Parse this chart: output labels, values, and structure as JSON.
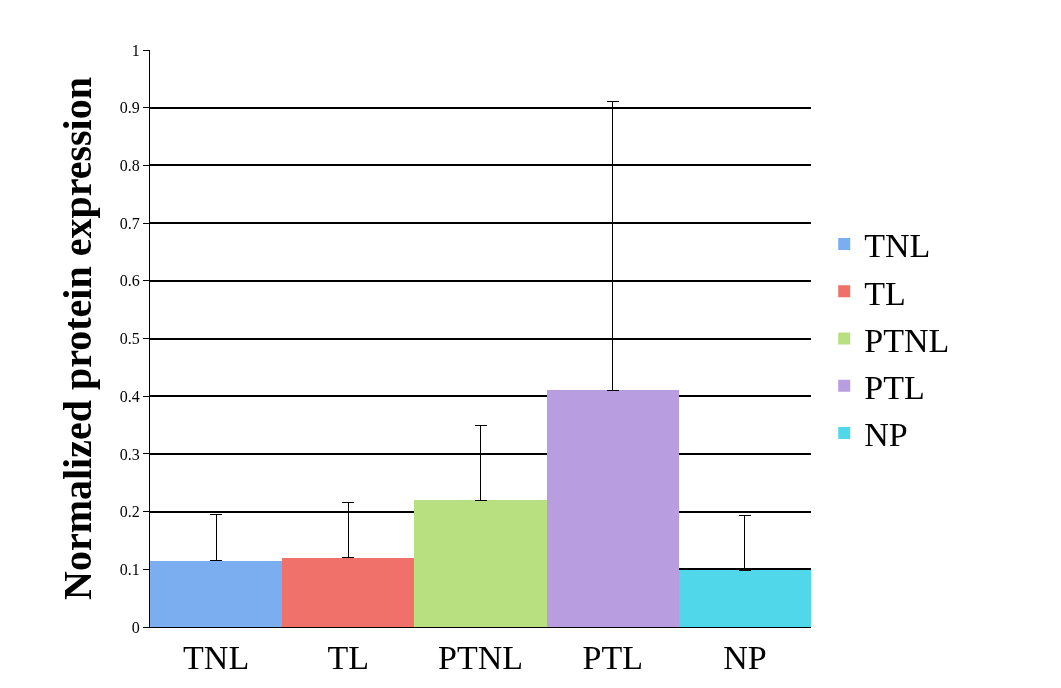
{
  "chart_data": {
    "type": "bar",
    "ylabel": "Normalized protein expression",
    "categories": [
      "TNL",
      "TL",
      "PTNL",
      "PTL",
      "NP"
    ],
    "series": [
      {
        "name": "TNL",
        "color": "#7aaef0",
        "values": [
          0.115,
          null,
          null,
          null,
          null
        ],
        "errors": [
          [
            0.115,
            0.195
          ],
          null,
          null,
          null,
          null
        ]
      },
      {
        "name": "TL",
        "color": "#f0706a",
        "values": [
          null,
          0.12,
          null,
          null,
          null
        ],
        "errors": [
          null,
          [
            0.12,
            0.215
          ],
          null,
          null,
          null
        ]
      },
      {
        "name": "PTNL",
        "color": "#b8e080",
        "values": [
          null,
          null,
          0.22,
          null,
          null
        ],
        "errors": [
          null,
          null,
          [
            0.22,
            0.35
          ],
          null,
          null
        ]
      },
      {
        "name": "PTL",
        "color": "#b89ee0",
        "values": [
          null,
          null,
          null,
          0.41,
          null
        ],
        "errors": [
          null,
          null,
          null,
          [
            0.41,
            0.91
          ],
          null
        ]
      },
      {
        "name": "NP",
        "color": "#50d8ea",
        "values": [
          null,
          null,
          null,
          null,
          0.098
        ],
        "errors": [
          null,
          null,
          null,
          null,
          [
            0.098,
            0.193
          ]
        ]
      }
    ],
    "ylim": [
      0,
      1
    ],
    "yticks": [
      0,
      0.1,
      0.2,
      0.3,
      0.4,
      0.5,
      0.6,
      0.7,
      0.8,
      0.9,
      1
    ],
    "grid": "y",
    "legend": "right"
  }
}
